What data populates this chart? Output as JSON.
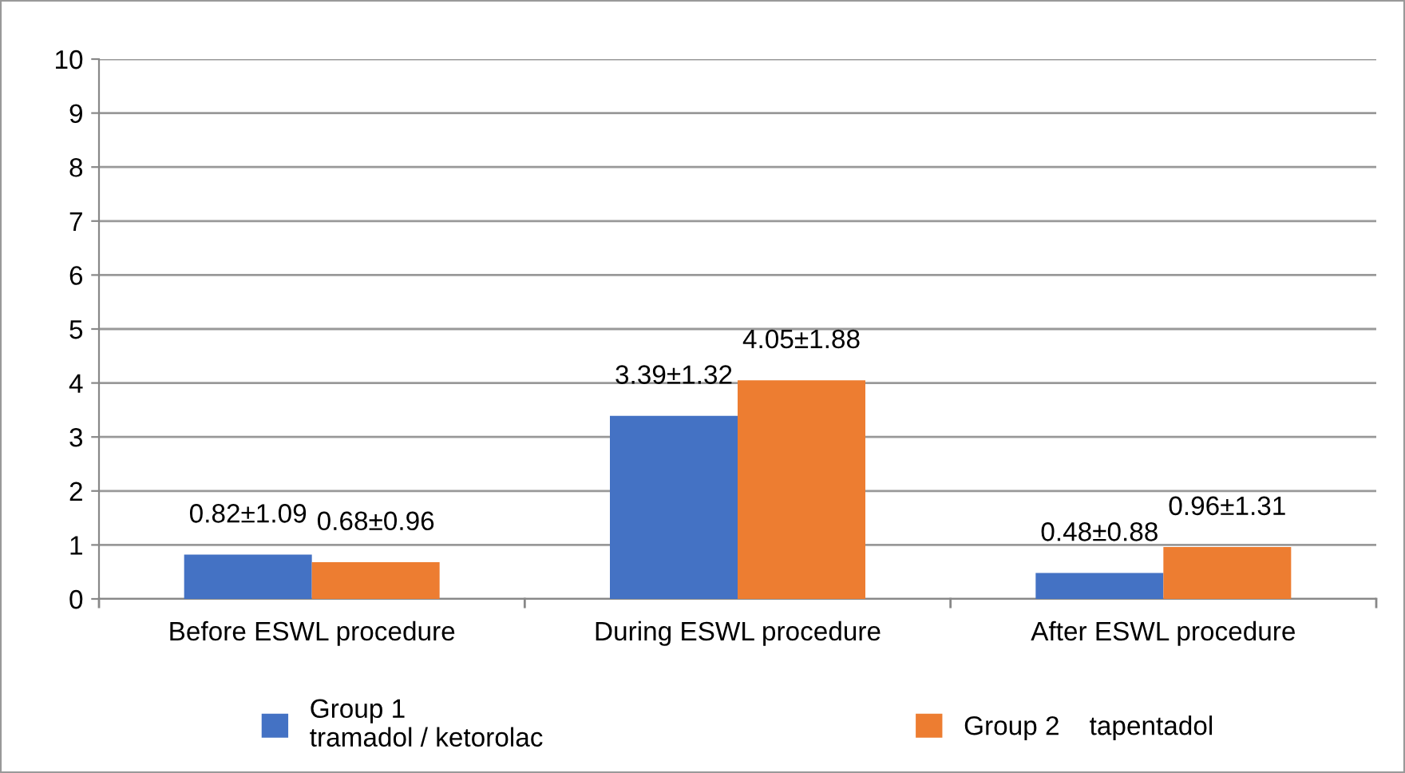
{
  "chart_data": {
    "type": "bar",
    "categories": [
      "Before ESWL procedure",
      "During ESWL procedure",
      "After ESWL procedure"
    ],
    "series": [
      {
        "name": "Group 1\ntramadol / ketorolac",
        "color": "#4472c4",
        "values": [
          0.82,
          3.39,
          0.48
        ],
        "value_labels": [
          "0.82±1.09",
          "3.39±1.32",
          "0.48±0.88"
        ]
      },
      {
        "name": "Group 2    tapentadol",
        "color": "#ed7d31",
        "values": [
          0.68,
          4.05,
          0.96
        ],
        "value_labels": [
          "0.68±0.96",
          "4.05±1.88",
          "0.96±1.31"
        ]
      }
    ],
    "ylim": [
      0,
      10
    ],
    "yticks": [
      0,
      1,
      2,
      3,
      4,
      5,
      6,
      7,
      8,
      9,
      10
    ],
    "grid": "y",
    "legend": "bottom"
  }
}
